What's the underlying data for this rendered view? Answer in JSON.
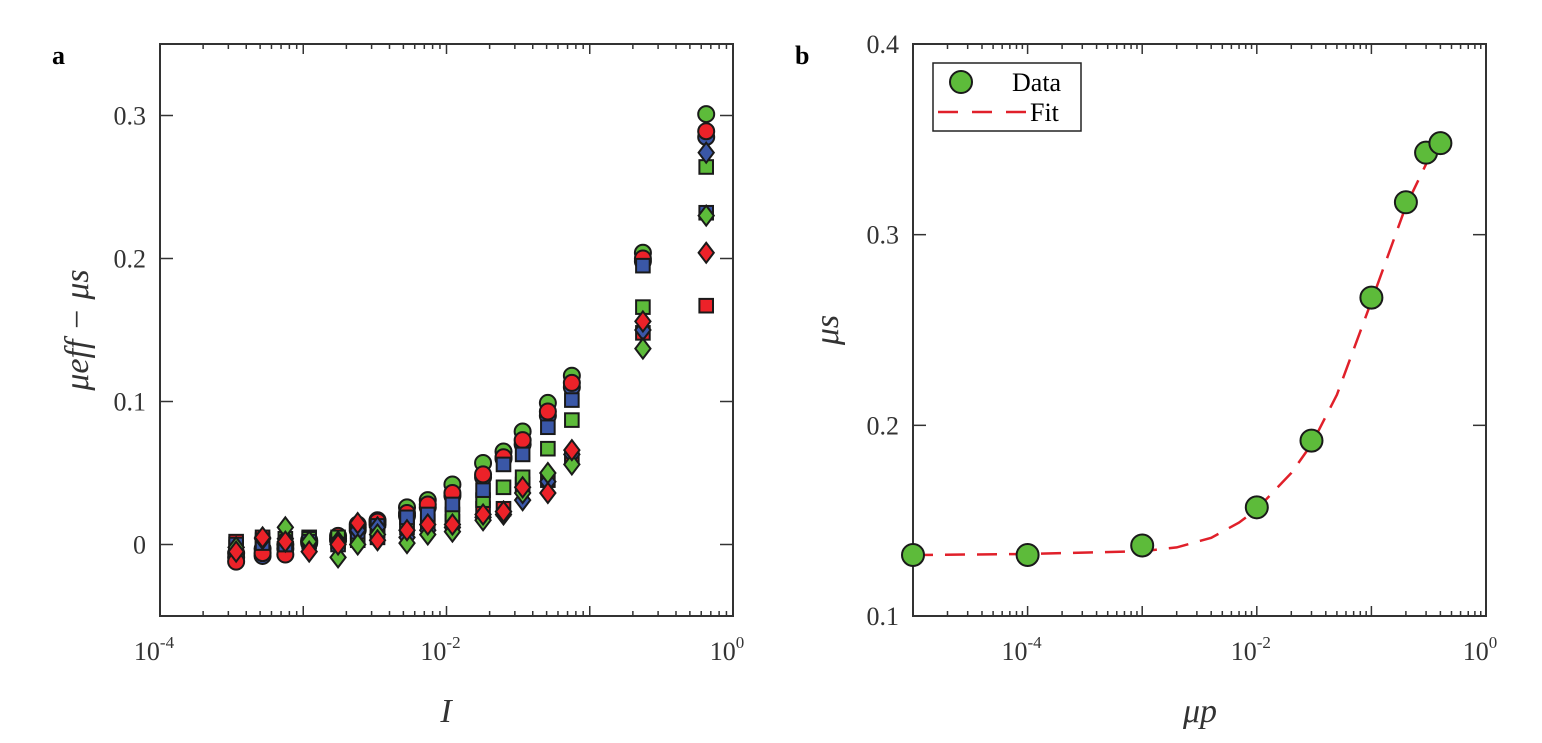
{
  "chart_data": [
    {
      "panel": "a",
      "type": "scatter",
      "xlabel": "I",
      "ylabel": "μeff − μs",
      "xscale": "log",
      "xlim": [
        0.0001,
        1
      ],
      "ylim": [
        -0.05,
        0.35
      ],
      "xticks": [
        {
          "base": "10",
          "exp": "-4"
        },
        {
          "base": "10",
          "exp": "-2"
        },
        {
          "base": "10",
          "exp": "0"
        }
      ],
      "yticks": [
        "0",
        "0.1",
        "0.2",
        "0.3"
      ],
      "ytick_values": [
        0,
        0.1,
        0.2,
        0.3
      ],
      "xtick_values": [
        0.0001,
        0.01,
        1
      ],
      "grid": false,
      "x": [
        0.00034,
        0.00052,
        0.00075,
        0.0011,
        0.00175,
        0.0024,
        0.0033,
        0.0053,
        0.0074,
        0.011,
        0.018,
        0.025,
        0.034,
        0.051,
        0.075,
        0.235,
        0.65
      ],
      "series": [
        {
          "marker": "circle",
          "color": "#3a57a7",
          "values": [
            -0.009,
            -0.008,
            -0.003,
            0.002,
            0.004,
            0.01,
            0.014,
            0.02,
            0.026,
            0.034,
            0.047,
            0.06,
            0.07,
            0.09,
            0.11,
            0.198,
            0.285
          ]
        },
        {
          "marker": "circle",
          "color": "#5dbb3a",
          "values": [
            -0.006,
            -0.003,
            0.0,
            0.003,
            0.003,
            0.014,
            0.017,
            0.026,
            0.031,
            0.042,
            0.057,
            0.065,
            0.079,
            0.099,
            0.118,
            0.204,
            0.301
          ]
        },
        {
          "marker": "circle",
          "color": "#ec2229",
          "values": [
            -0.012,
            -0.006,
            -0.007,
            0.001,
            0.006,
            0.012,
            0.016,
            0.022,
            0.028,
            0.036,
            0.049,
            0.061,
            0.073,
            0.093,
            0.113,
            0.2,
            0.289
          ]
        },
        {
          "marker": "square",
          "color": "#ec2229",
          "values": [
            0.002,
            0.005,
            0.0,
            0.005,
            0.002,
            0.003,
            0.005,
            0.012,
            0.018,
            0.016,
            0.025,
            0.025,
            0.042,
            0.045,
            0.061,
            0.148,
            0.167
          ]
        },
        {
          "marker": "square",
          "color": "#5dbb3a",
          "values": [
            -0.002,
            0.003,
            0.004,
            0.004,
            0.005,
            0.006,
            0.01,
            0.014,
            0.016,
            0.021,
            0.031,
            0.04,
            0.047,
            0.067,
            0.087,
            0.166,
            0.264
          ]
        },
        {
          "marker": "square",
          "color": "#3a57a7",
          "values": [
            0.0,
            0.001,
            0.0,
            0.002,
            0.0,
            0.009,
            0.013,
            0.019,
            0.021,
            0.028,
            0.038,
            0.056,
            0.063,
            0.082,
            0.101,
            0.195,
            0.232
          ]
        },
        {
          "marker": "diamond",
          "color": "#3a57a7",
          "values": [
            -0.002,
            0.004,
            0.004,
            0.0,
            0.002,
            0.01,
            0.012,
            0.005,
            0.01,
            0.012,
            0.019,
            0.023,
            0.031,
            0.044,
            0.063,
            0.15,
            0.274
          ]
        },
        {
          "marker": "diamond",
          "color": "#5dbb3a",
          "values": [
            -0.002,
            0.004,
            0.012,
            0.002,
            -0.009,
            0.0,
            0.007,
            0.001,
            0.007,
            0.009,
            0.017,
            0.021,
            0.036,
            0.05,
            0.056,
            0.137,
            0.23
          ]
        },
        {
          "marker": "diamond",
          "color": "#ec2229",
          "values": [
            -0.005,
            0.005,
            0.002,
            -0.005,
            0.0,
            0.015,
            0.003,
            0.01,
            0.014,
            0.014,
            0.021,
            0.023,
            0.04,
            0.036,
            0.066,
            0.156,
            0.204
          ]
        }
      ]
    },
    {
      "panel": "b",
      "type": "scatter",
      "xlabel": "μp",
      "ylabel": "μs",
      "xscale": "log",
      "xlim": [
        1e-05,
        1
      ],
      "ylim": [
        0.1,
        0.4
      ],
      "xticks": [
        {
          "base": "10",
          "exp": "-4"
        },
        {
          "base": "10",
          "exp": "-2"
        },
        {
          "base": "10",
          "exp": "0"
        }
      ],
      "xtick_values": [
        0.0001,
        0.01,
        1
      ],
      "yticks": [
        "0.1",
        "0.2",
        "0.3",
        "0.4"
      ],
      "ytick_values": [
        0.1,
        0.2,
        0.3,
        0.4
      ],
      "grid": false,
      "legend": {
        "position": "top-left",
        "entries": [
          "Data",
          "Fit"
        ]
      },
      "series": [
        {
          "name": "Data",
          "marker": "circle",
          "color": "#5dbb3a",
          "x": [
            1e-05,
            0.0001,
            0.001,
            0.01,
            0.03,
            0.1,
            0.2,
            0.3,
            0.4
          ],
          "y": [
            0.132,
            0.132,
            0.137,
            0.157,
            0.192,
            0.267,
            0.317,
            0.343,
            0.348
          ]
        },
        {
          "name": "Fit",
          "style": "dashed",
          "color": "#e0202a",
          "x": [
            1e-05,
            0.0001,
            0.001,
            0.002,
            0.004,
            0.007,
            0.01,
            0.02,
            0.03,
            0.05,
            0.1,
            0.2,
            0.3,
            0.42
          ],
          "y": [
            0.132,
            0.1325,
            0.134,
            0.136,
            0.141,
            0.149,
            0.156,
            0.175,
            0.19,
            0.216,
            0.265,
            0.315,
            0.337,
            0.354
          ]
        }
      ]
    }
  ]
}
